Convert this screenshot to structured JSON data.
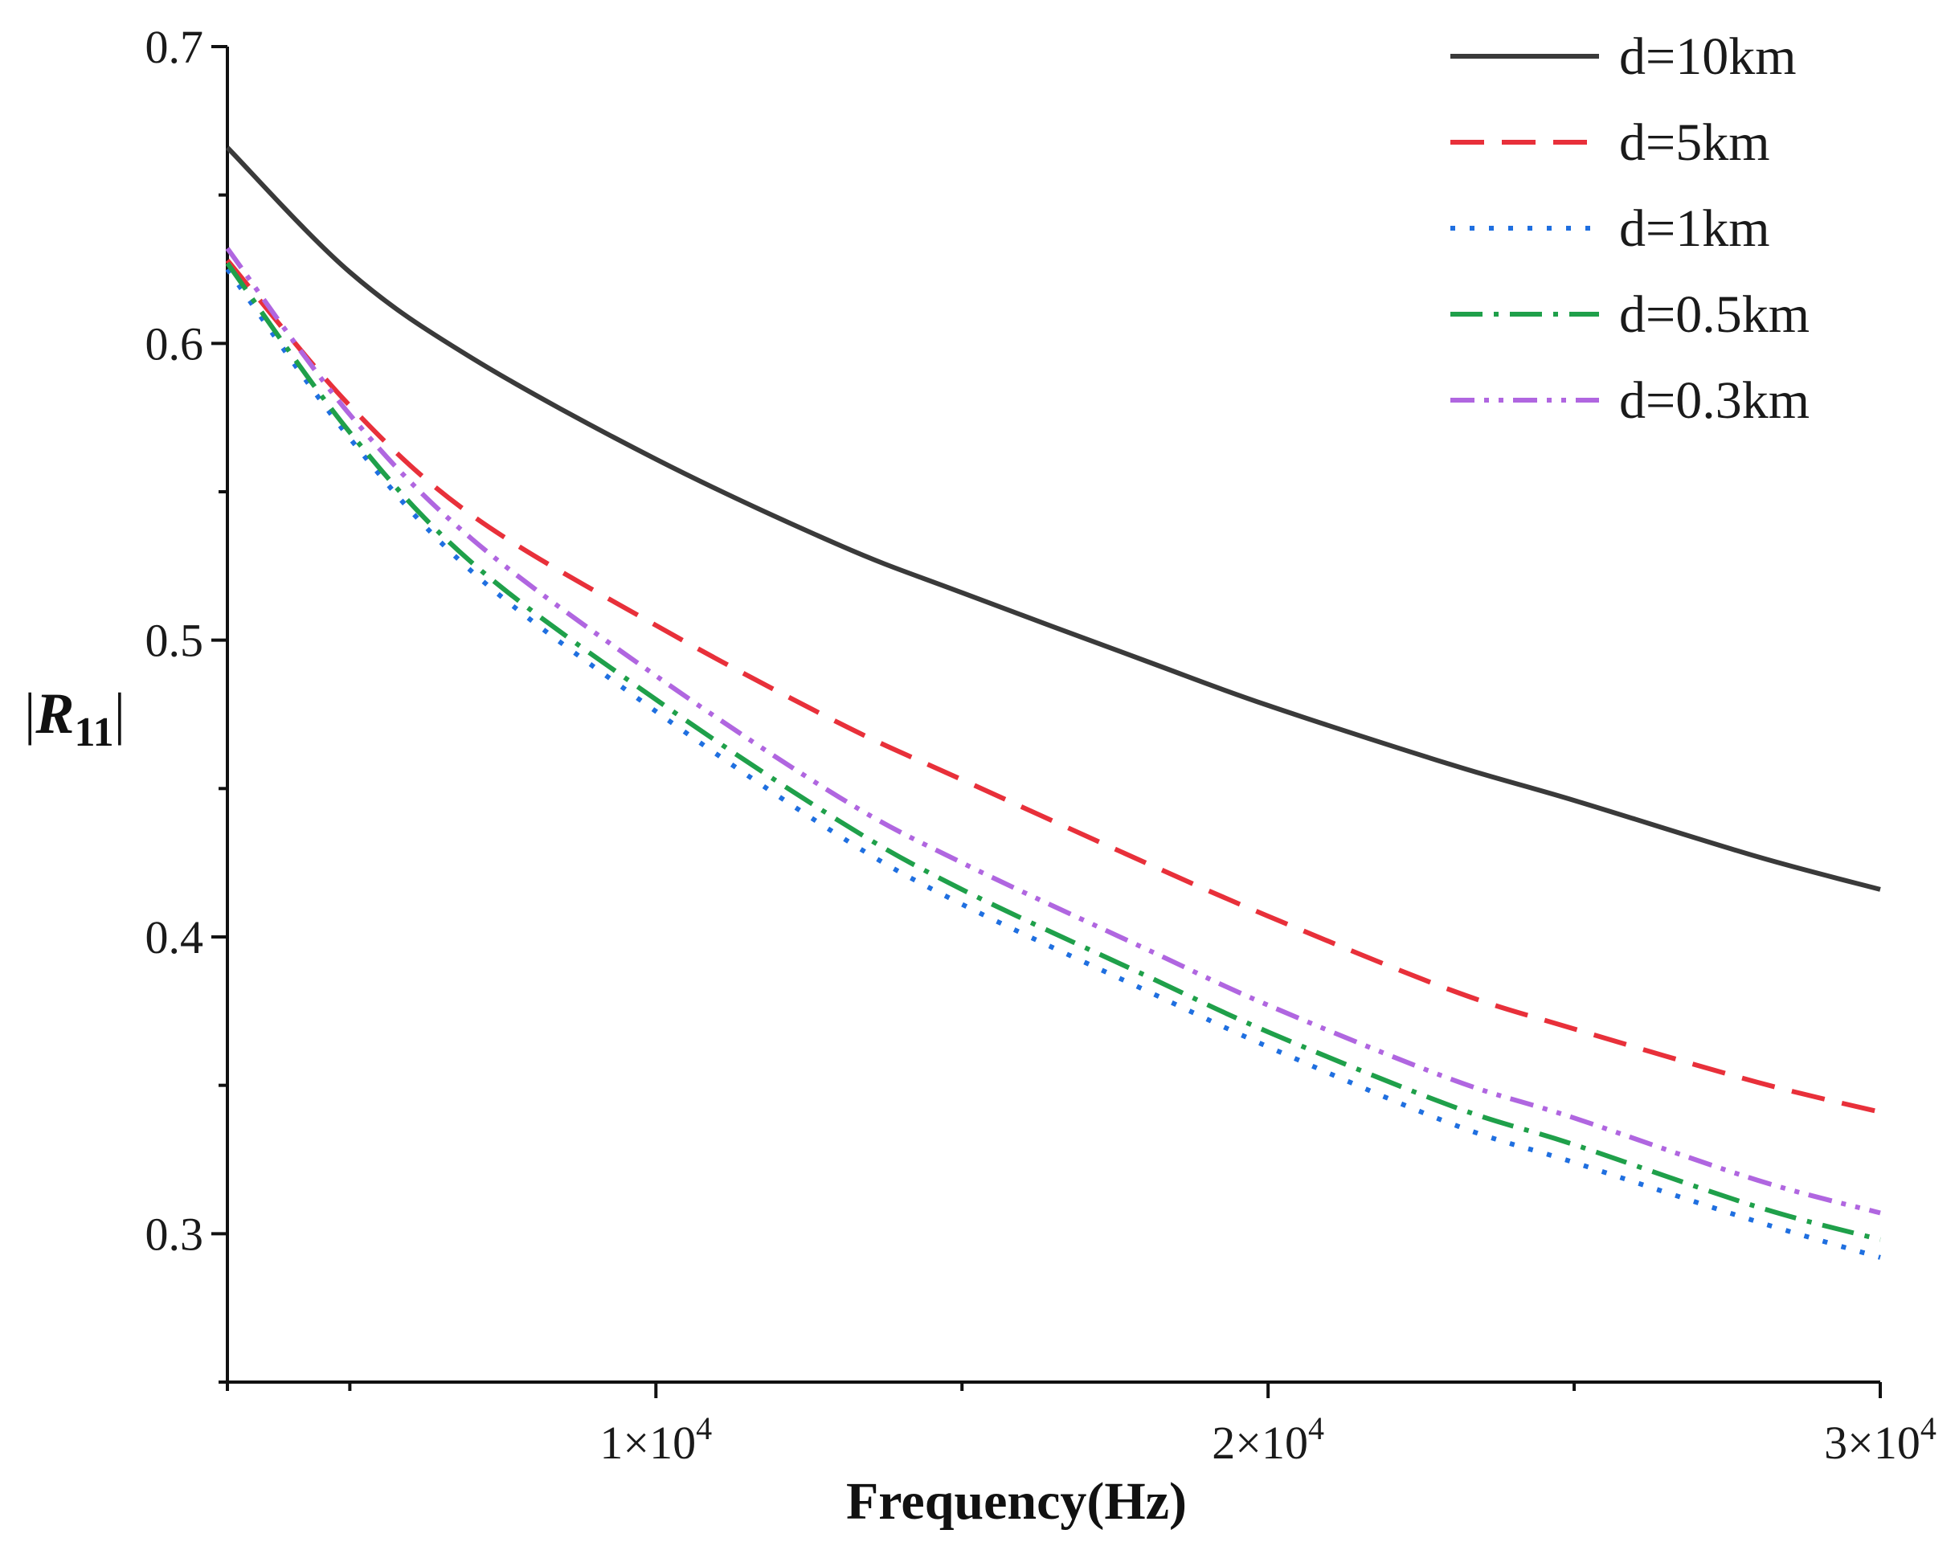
{
  "chart_data": {
    "type": "line",
    "title": "",
    "xlabel": "Frequency(Hz)",
    "ylabel": "|R11|",
    "ylabel_main": "R",
    "ylabel_sub": "11",
    "xlim": [
      3000,
      30000
    ],
    "ylim": [
      0.25,
      0.7
    ],
    "x_ticks": [
      {
        "value": 10000,
        "mantissa": "1×10",
        "exp": "4"
      },
      {
        "value": 20000,
        "mantissa": "2×10",
        "exp": "4"
      },
      {
        "value": 30000,
        "mantissa": "3×10",
        "exp": "4"
      }
    ],
    "x_minor_ticks": [
      5000,
      15000,
      25000
    ],
    "y_ticks": [
      {
        "value": 0.3,
        "label": "0.3"
      },
      {
        "value": 0.4,
        "label": "0.4"
      },
      {
        "value": 0.5,
        "label": "0.5"
      },
      {
        "value": 0.6,
        "label": "0.6"
      },
      {
        "value": 0.7,
        "label": "0.7"
      }
    ],
    "y_minor_ticks": [
      0.25,
      0.35,
      0.45,
      0.55,
      0.65
    ],
    "legend_position": "top-right",
    "x": [
      3000,
      5000,
      7000,
      10000,
      13000,
      15000,
      18000,
      20000,
      23000,
      25000,
      28000,
      30000
    ],
    "series": [
      {
        "name": "d=10km",
        "color": "#3a3a3a",
        "dash": "solid",
        "values": [
          0.666,
          0.624,
          0.595,
          0.561,
          0.532,
          0.516,
          0.493,
          0.478,
          0.458,
          0.446,
          0.427,
          0.416
        ]
      },
      {
        "name": "d=5km",
        "color": "#e8303a",
        "dash": "dashed",
        "values": [
          0.628,
          0.579,
          0.542,
          0.505,
          0.472,
          0.453,
          0.425,
          0.407,
          0.382,
          0.369,
          0.351,
          0.341
        ]
      },
      {
        "name": "d=1km",
        "color": "#1f6fe0",
        "dash": "dotted",
        "values": [
          0.625,
          0.568,
          0.523,
          0.476,
          0.434,
          0.411,
          0.382,
          0.363,
          0.337,
          0.324,
          0.304,
          0.292
        ]
      },
      {
        "name": "d=0.5km",
        "color": "#1fa04a",
        "dash": "dashdot",
        "values": [
          0.627,
          0.57,
          0.526,
          0.48,
          0.439,
          0.416,
          0.387,
          0.368,
          0.343,
          0.33,
          0.309,
          0.298
        ]
      },
      {
        "name": "d=0.3km",
        "color": "#b066e0",
        "dash": "dashdotdot",
        "values": [
          0.632,
          0.576,
          0.534,
          0.488,
          0.447,
          0.425,
          0.396,
          0.377,
          0.352,
          0.339,
          0.318,
          0.307
        ]
      }
    ]
  }
}
